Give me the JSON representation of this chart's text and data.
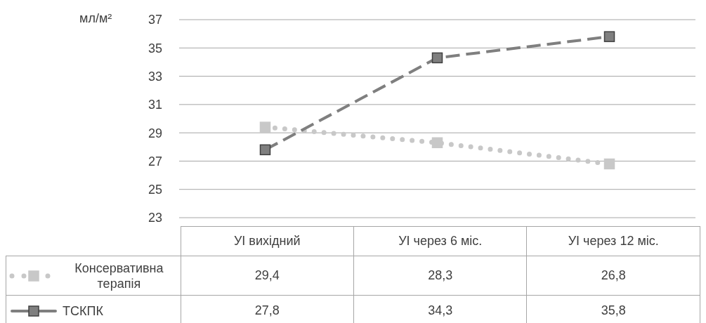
{
  "chart_data": {
    "type": "line",
    "ylabel": "мл/м²",
    "categories": [
      "УІ вихідний",
      "УІ через 6 міс.",
      "УІ через 12 міс."
    ],
    "series": [
      {
        "name": "Консервативна терапія",
        "color": "#c8c8c8",
        "values": [
          29.4,
          28.3,
          26.8
        ],
        "value_labels": [
          "29,4",
          "28,3",
          "26,8"
        ],
        "line_style": "dotted",
        "marker": "square"
      },
      {
        "name": "ТСКПК",
        "color": "#7f7f7f",
        "values": [
          27.8,
          34.3,
          35.8
        ],
        "value_labels": [
          "27,8",
          "34,3",
          "35,8"
        ],
        "line_style": "dashed",
        "marker": "square"
      }
    ],
    "ylim": [
      23,
      37
    ],
    "yticks": [
      23,
      25,
      27,
      29,
      31,
      33,
      35,
      37
    ],
    "grid": "y",
    "legend": "bottom"
  }
}
